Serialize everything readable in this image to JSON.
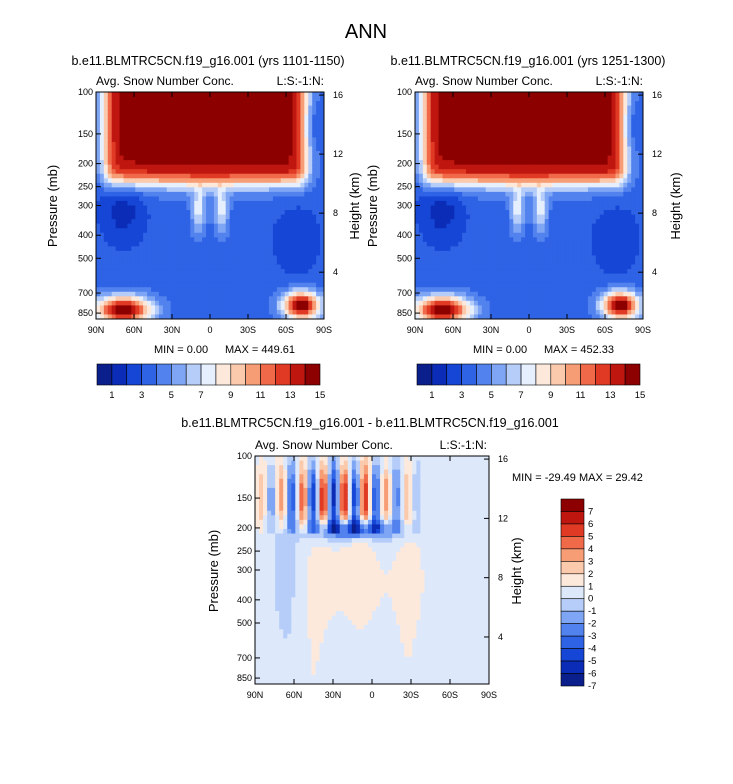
{
  "main_title": "ANN",
  "colors": {
    "palette_15": [
      "#0a1e8c",
      "#0b2cb6",
      "#1646d6",
      "#2f63e6",
      "#5282ee",
      "#7fa6f4",
      "#b5cdf8",
      "#e6effd",
      "#fde9dc",
      "#fbc9ac",
      "#f79d76",
      "#f06a4a",
      "#e03a24",
      "#bf1610",
      "#8c0000"
    ],
    "palette_diff": [
      "#0a1e8c",
      "#0b2cb6",
      "#1646d6",
      "#2f63e6",
      "#5282ee",
      "#7fa6f4",
      "#b5cdf8",
      "#dde9fb",
      "#fde9dc",
      "#fbc9ac",
      "#f79d76",
      "#f06a4a",
      "#e03a24",
      "#bf1610",
      "#8c0000"
    ]
  },
  "chart_data": [
    {
      "type": "heatmap",
      "title": "b.e11.BLMTRC5CN.f19_g16.001 (yrs 1101-1150)",
      "subtitle_left": "Avg. Snow Number Conc.",
      "subtitle_right": "L:S:-1:N:",
      "ylabel": "Pressure (mb)",
      "ylabel_right": "Height (km)",
      "x_ticks": [
        "90N",
        "60N",
        "30N",
        "0",
        "30S",
        "60S",
        "90S"
      ],
      "y_ticks": [
        "100",
        "150",
        "200",
        "250",
        "300",
        "400",
        "500",
        "700",
        "850"
      ],
      "y_ticks_right": [
        "16",
        "12",
        "8",
        "4"
      ],
      "min_label": "MIN =   0.00",
      "max_label": "MAX = 449.61",
      "colorbar_labels": [
        "1",
        "3",
        "5",
        "7",
        "9",
        "11",
        "13",
        "15"
      ]
    },
    {
      "type": "heatmap",
      "title": "b.e11.BLMTRC5CN.f19_g16.001 (yrs 1251-1300)",
      "subtitle_left": "Avg. Snow Number Conc.",
      "subtitle_right": "L:S:-1:N:",
      "ylabel": "Pressure (mb)",
      "ylabel_right": "Height (km)",
      "x_ticks": [
        "90N",
        "60N",
        "30N",
        "0",
        "30S",
        "60S",
        "90S"
      ],
      "y_ticks": [
        "100",
        "150",
        "200",
        "250",
        "300",
        "400",
        "500",
        "700",
        "850"
      ],
      "y_ticks_right": [
        "16",
        "12",
        "8",
        "4"
      ],
      "min_label": "MIN =   0.00",
      "max_label": "MAX = 452.33",
      "colorbar_labels": [
        "1",
        "3",
        "5",
        "7",
        "9",
        "11",
        "13",
        "15"
      ]
    },
    {
      "type": "heatmap",
      "title": "b.e11.BLMTRC5CN.f19_g16.001 - b.e11.BLMTRC5CN.f19_g16.001",
      "subtitle_left": "Avg. Snow Number Conc.",
      "subtitle_right": "L:S:-1:N:",
      "ylabel": "Pressure (mb)",
      "ylabel_right": "Height (km)",
      "x_ticks": [
        "90N",
        "60N",
        "30N",
        "0",
        "30S",
        "60S",
        "90S"
      ],
      "y_ticks": [
        "100",
        "150",
        "200",
        "250",
        "300",
        "400",
        "500",
        "700",
        "850"
      ],
      "y_ticks_right": [
        "16",
        "12",
        "8",
        "4"
      ],
      "minmax_label": "MIN = -29.49  MAX =  29.42",
      "colorbar_labels": [
        "7",
        "6",
        "5",
        "4",
        "3",
        "2",
        "1",
        "0",
        "-1",
        "-2",
        "-3",
        "-4",
        "-5",
        "-6",
        "-7"
      ]
    }
  ]
}
